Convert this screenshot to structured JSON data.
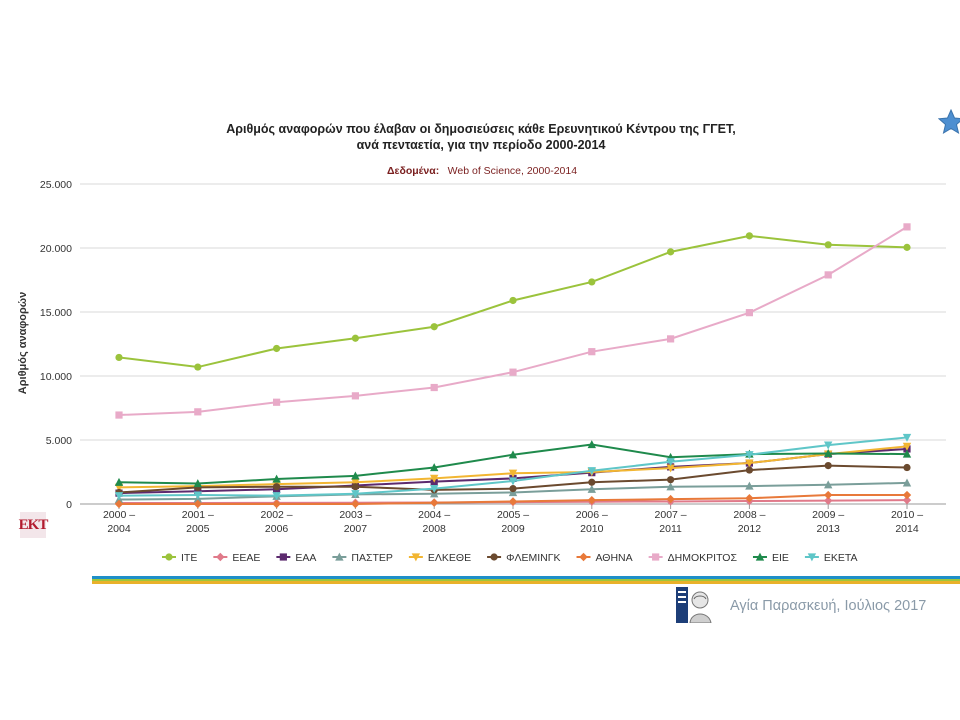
{
  "chart_data": {
    "type": "line",
    "title_line1": "Αριθμός αναφορών που έλαβαν οι δημοσιεύσεις κάθε Ερευνητικού Κέντρου της ΓΓΕΤ,",
    "title_line2": "ανά πενταετία, για την περίοδο 2000-2014",
    "source_label": "Δεδομένα:",
    "source_value": "Web of Science, 2000-2014",
    "ylabel": "Αριθμός αναφορών",
    "xlabel": "",
    "ylim": [
      0,
      25000
    ],
    "yticks": [
      0,
      5000,
      10000,
      15000,
      20000,
      25000
    ],
    "ytick_labels": [
      "0",
      "5.000",
      "10.000",
      "15.000",
      "20.000",
      "25.000"
    ],
    "categories": [
      [
        "2000 –",
        "2004"
      ],
      [
        "2001 –",
        "2005"
      ],
      [
        "2002 –",
        "2006"
      ],
      [
        "2003 –",
        "2007"
      ],
      [
        "2004 –",
        "2008"
      ],
      [
        "2005 –",
        "2009"
      ],
      [
        "2006 –",
        "2010"
      ],
      [
        "2007 –",
        "2011"
      ],
      [
        "2008 –",
        "2012"
      ],
      [
        "2009 –",
        "2013"
      ],
      [
        "2010 –",
        "2014"
      ]
    ],
    "grid": true,
    "legend_position": "bottom",
    "series": [
      {
        "name": "ΙΤΕ",
        "color": "#9bc33c",
        "marker": "circle",
        "values": [
          11450,
          10700,
          12150,
          12950,
          13850,
          15900,
          17350,
          19700,
          20950,
          20250,
          20050
        ]
      },
      {
        "name": "ΕΕΑΕ",
        "color": "#e07a8a",
        "marker": "diamond",
        "values": [
          80,
          80,
          90,
          100,
          120,
          150,
          180,
          200,
          230,
          260,
          300
        ]
      },
      {
        "name": "ΕΑΑ",
        "color": "#5c2a6e",
        "marker": "square",
        "values": [
          850,
          1000,
          1150,
          1450,
          1750,
          2000,
          2450,
          2900,
          3200,
          3900,
          4300
        ]
      },
      {
        "name": "ΠΑΣΤΕΡ",
        "color": "#7a9e9a",
        "marker": "triangle",
        "values": [
          350,
          400,
          600,
          750,
          800,
          900,
          1150,
          1350,
          1400,
          1500,
          1650
        ]
      },
      {
        "name": "ΕΛΚΕΘΕ",
        "color": "#f2b632",
        "marker": "triangle-down",
        "values": [
          1300,
          1400,
          1550,
          1700,
          2000,
          2400,
          2500,
          2800,
          3200,
          3900,
          4500
        ]
      },
      {
        "name": "ΦΛΕΜΙΝΓΚ",
        "color": "#6b4a2f",
        "marker": "circle",
        "values": [
          900,
          1300,
          1350,
          1350,
          1100,
          1200,
          1700,
          1900,
          2650,
          3000,
          2850
        ]
      },
      {
        "name": "ΑΘΗΝΑ",
        "color": "#e8793a",
        "marker": "diamond",
        "values": [
          0,
          0,
          0,
          0,
          100,
          200,
          300,
          380,
          450,
          700,
          700
        ]
      },
      {
        "name": "ΔΗΜΟΚΡΙΤΟΣ",
        "color": "#e8aac8",
        "marker": "square",
        "values": [
          6950,
          7200,
          7950,
          8450,
          9100,
          10300,
          11900,
          12900,
          14950,
          17900,
          21650
        ]
      },
      {
        "name": "ΕΙΕ",
        "color": "#1f8a4c",
        "marker": "triangle",
        "values": [
          1700,
          1600,
          1950,
          2200,
          2850,
          3850,
          4650,
          3650,
          3900,
          3950,
          3900
        ]
      },
      {
        "name": "ΕΚΕΤΑ",
        "color": "#5fc6c8",
        "marker": "triangle-down",
        "values": [
          650,
          700,
          650,
          800,
          1200,
          1800,
          2600,
          3300,
          3850,
          4600,
          5200
        ]
      }
    ]
  },
  "footer": {
    "caption": "Αγία Παρασκευή, Ιούλιος 2017",
    "ekt_logo_text": "ΕΚΤ",
    "stripe_colors": [
      "#1e8fc8",
      "#9dc63c",
      "#e9b12a"
    ]
  }
}
